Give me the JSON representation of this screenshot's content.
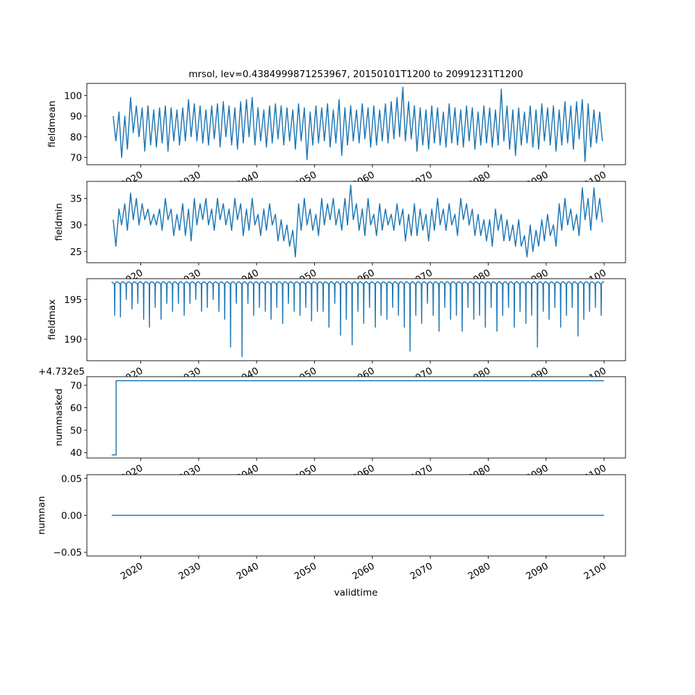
{
  "chart_data": {
    "type": "line",
    "title": "mrsol, lev=0.4384999871253967, 20150101T1200 to 20991231T1200",
    "xlabel": "validtime",
    "xlim": [
      2010.7,
      2103.7
    ],
    "xticks": [
      2020,
      2030,
      2040,
      2050,
      2060,
      2070,
      2080,
      2090,
      2100
    ],
    "xtick_labels": [
      "2020",
      "2030",
      "2040",
      "2050",
      "2060",
      "2070",
      "2080",
      "2090",
      "2100"
    ],
    "line_color": "#1f77b4",
    "panels": [
      {
        "ylabel": "fieldmean",
        "ylim": [
          66.5,
          105.8
        ],
        "yticks": [
          70,
          80,
          90,
          100
        ],
        "ytick_labels": [
          "70",
          "80",
          "90",
          "100"
        ],
        "encoding": "per-year high/low pairs starting 2015",
        "start_year": 2015,
        "values": [
          90,
          78,
          92,
          70,
          90,
          74,
          99,
          82,
          95,
          80,
          94,
          73,
          95,
          76,
          93,
          75,
          94,
          77,
          95,
          73,
          94,
          78,
          93,
          76,
          94,
          78,
          98,
          80,
          96,
          78,
          95,
          77,
          93,
          76,
          95,
          79,
          96,
          75,
          97,
          80,
          95,
          76,
          94,
          74,
          97,
          77,
          98,
          80,
          99,
          76,
          94,
          78,
          93,
          75,
          95,
          77,
          96,
          79,
          95,
          76,
          94,
          78,
          93,
          74,
          96,
          78,
          94,
          69,
          92,
          76,
          95,
          77,
          94,
          78,
          96,
          75,
          93,
          77,
          98,
          71,
          94,
          76,
          95,
          78,
          93,
          77,
          96,
          79,
          94,
          75,
          95,
          76,
          93,
          78,
          96,
          77,
          97,
          79,
          99,
          80,
          104,
          78,
          97,
          79,
          95,
          73,
          94,
          76,
          93,
          74,
          95,
          77,
          94,
          76,
          92,
          75,
          96,
          77,
          94,
          76,
          93,
          75,
          95,
          78,
          94,
          74,
          92,
          76,
          95,
          77,
          94,
          75,
          93,
          76,
          103,
          78,
          95,
          74,
          93,
          71,
          94,
          76,
          92,
          77,
          95,
          75,
          93,
          74,
          96,
          78,
          94,
          76,
          95,
          73,
          93,
          76,
          97,
          77,
          95,
          74,
          97,
          79,
          98,
          68,
          96,
          75,
          93,
          77,
          92,
          78
        ]
      },
      {
        "ylabel": "fieldmin",
        "ylim": [
          22.9,
          38.2
        ],
        "yticks": [
          25,
          30,
          35
        ],
        "ytick_labels": [
          "25",
          "30",
          "35"
        ],
        "encoding": "per-year high/low pairs starting 2015",
        "start_year": 2015,
        "values": [
          31,
          26,
          33,
          30,
          34,
          29,
          36,
          31,
          35,
          30,
          34,
          31,
          33,
          30,
          32,
          30,
          33,
          29,
          35,
          31,
          33,
          28,
          32,
          29,
          34,
          28,
          33,
          27,
          35,
          30,
          34,
          31,
          35,
          30,
          33,
          29,
          35,
          31,
          34,
          30,
          33,
          29,
          35,
          31,
          34,
          28,
          33,
          29,
          35,
          30,
          32,
          28,
          33,
          29,
          34,
          30,
          32,
          27,
          31,
          27,
          30,
          26,
          29,
          24,
          34,
          29,
          35,
          30,
          33,
          29,
          32,
          28,
          35,
          30,
          34,
          31,
          35,
          30,
          33,
          29,
          35,
          30,
          37.5,
          31,
          34,
          29,
          33,
          28,
          35,
          30,
          32,
          28,
          34,
          29,
          33,
          30,
          32,
          29,
          34,
          30,
          33,
          27,
          32,
          28,
          34,
          28,
          33,
          29,
          32,
          27,
          33,
          29,
          35,
          30,
          33,
          29,
          34,
          30,
          32,
          28,
          35,
          31,
          34,
          30,
          33,
          28,
          32,
          28,
          31,
          27,
          31,
          26,
          33,
          29,
          32,
          27,
          31,
          27,
          30,
          26,
          31,
          26,
          28,
          24,
          30,
          25,
          29,
          26,
          31,
          27,
          32,
          28,
          30,
          26,
          34,
          29,
          35,
          30,
          33,
          29,
          32,
          28,
          37,
          31,
          35,
          29,
          37,
          31,
          35,
          30.5
        ]
      },
      {
        "ylabel": "fieldmax",
        "ylim": [
          187.3,
          197.6
        ],
        "yticks": [
          190,
          195
        ],
        "ytick_labels": [
          "190",
          "195"
        ],
        "encoding": "baseline plus yearly minimum dips starting 2015",
        "start_year": 2015,
        "baseline": 197.2,
        "values": [
          193,
          192.8,
          195,
          193.8,
          194.5,
          192.5,
          191.5,
          194,
          192.5,
          194.5,
          193.5,
          194.5,
          193,
          194.5,
          195,
          193.5,
          194,
          195,
          193.5,
          192.5,
          189,
          194.5,
          187.8,
          194.5,
          193,
          194,
          193.5,
          192.5,
          194,
          192,
          194.5,
          193.5,
          193,
          194,
          192.3,
          193.5,
          193.5,
          191.5,
          194.5,
          190.5,
          192.5,
          189.3,
          193.5,
          192,
          194,
          191.5,
          193,
          192.5,
          194,
          193,
          191.5,
          188.5,
          193,
          192,
          194.5,
          193,
          191,
          194,
          192.5,
          193,
          191,
          194,
          192.5,
          193,
          191.5,
          194,
          191,
          193,
          194,
          191.5,
          193.5,
          192,
          193,
          189,
          193.5,
          192.5,
          194,
          191.5,
          193,
          194,
          190.4,
          192.5,
          193.5,
          194,
          193
        ]
      },
      {
        "ylabel": "nummasked",
        "offset_label": "+4.732e5",
        "ylim": [
          37.6,
          73.8
        ],
        "yticks": [
          40,
          50,
          60,
          70
        ],
        "ytick_labels": [
          "40",
          "50",
          "60",
          "70"
        ],
        "encoding": "step points",
        "points": [
          [
            2015.0,
            39
          ],
          [
            2015.75,
            39
          ],
          [
            2015.75,
            72
          ],
          [
            2100.0,
            72
          ]
        ]
      },
      {
        "ylabel": "numnan",
        "ylim": [
          -0.055,
          0.055
        ],
        "yticks": [
          -0.05,
          0.0,
          0.05
        ],
        "ytick_labels": [
          "−0.05",
          "0.00",
          "0.05"
        ],
        "encoding": "step points",
        "points": [
          [
            2015.0,
            0
          ],
          [
            2100.0,
            0
          ]
        ]
      }
    ]
  }
}
